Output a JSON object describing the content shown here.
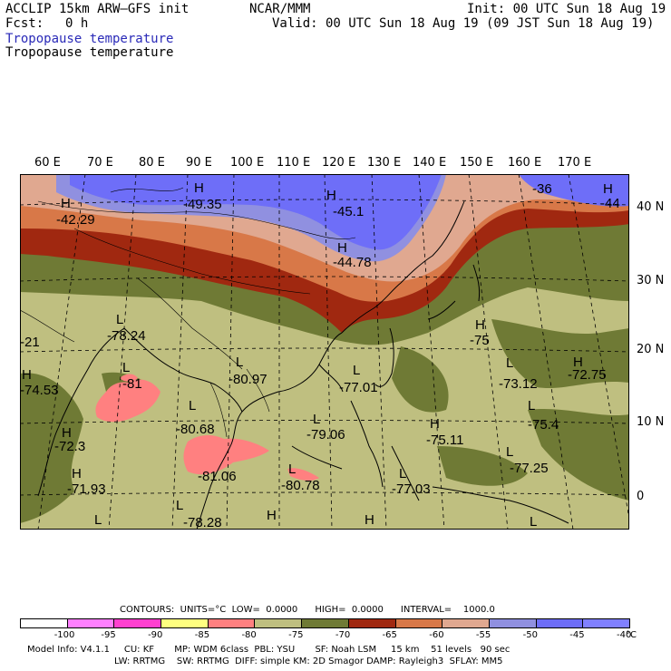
{
  "header": {
    "model": "ACCLIP 15km ARW–GFS init",
    "fcst_label": "Fcst:",
    "fcst_value": "0 h",
    "center": "NCAR/MMM",
    "init": "Init: 00 UTC Sun 18 Aug 19",
    "valid": "Valid: 00 UTC Sun 18 Aug 19 (09 JST Sun 18 Aug 19)",
    "field_title_blue": "Tropopause temperature",
    "field_title": "Tropopause temperature"
  },
  "axes": {
    "lon_labels": [
      "60 E",
      "70 E",
      "80 E",
      "90 E",
      "100 E",
      "110 E",
      "120 E",
      "130 E",
      "140 E",
      "150 E",
      "160 E",
      "170 E"
    ],
    "lat_labels": [
      "40 N",
      "30 N",
      "20 N",
      "10 N",
      "0"
    ]
  },
  "map_labels": [
    {
      "t": "H"
    },
    {
      "t": "-42.29"
    },
    {
      "t": "H"
    },
    {
      "t": "-49.35"
    },
    {
      "t": "H"
    },
    {
      "t": "-45.1"
    },
    {
      "t": "H"
    },
    {
      "t": "-44.78"
    },
    {
      "t": "-36"
    },
    {
      "t": "H"
    },
    {
      "t": "-44"
    },
    {
      "t": "L"
    },
    {
      "t": "-78.24"
    },
    {
      "t": "-21"
    },
    {
      "t": "H"
    },
    {
      "t": "-74.53"
    },
    {
      "t": "L"
    },
    {
      "t": "-81"
    },
    {
      "t": "L"
    },
    {
      "t": "-80.97"
    },
    {
      "t": "L"
    },
    {
      "t": "-77.01"
    },
    {
      "t": "H"
    },
    {
      "t": "-75"
    },
    {
      "t": "L"
    },
    {
      "t": "-73.12"
    },
    {
      "t": "H"
    },
    {
      "t": "-72.75"
    },
    {
      "t": "L"
    },
    {
      "t": "-80.68"
    },
    {
      "t": "L"
    },
    {
      "t": "-79.06"
    },
    {
      "t": "H"
    },
    {
      "t": "-75.11"
    },
    {
      "t": "L"
    },
    {
      "t": "-75.4"
    },
    {
      "t": "H"
    },
    {
      "t": "-72.3"
    },
    {
      "t": "H"
    },
    {
      "t": "-71.93"
    },
    {
      "t": "-81.06"
    },
    {
      "t": "L"
    },
    {
      "t": "-80.78"
    },
    {
      "t": "L"
    },
    {
      "t": "-77.03"
    },
    {
      "t": "L"
    },
    {
      "t": "-77.25"
    },
    {
      "t": "L"
    },
    {
      "t": "-78.28"
    },
    {
      "t": "H"
    },
    {
      "t": "H"
    },
    {
      "t": "L"
    },
    {
      "t": "L"
    }
  ],
  "footer": {
    "contours": "CONTOURS:  UNITS=°C  LOW=  0.0000      HIGH=  0.0000      INTERVAL=    1000.0",
    "unit": "°C",
    "model_info_1": "Model Info: V4.1.1     CU: KF       MP: WDM 6class  PBL: YSU       SF: Noah LSM     15 km    51 levels   90 sec",
    "model_info_2": "LW: RRTMG    SW: RRTMG  DIFF: simple KM: 2D Smagor DAMP: Rayleigh3  SFLAY: MM5"
  },
  "colorbar": {
    "labels": [
      "-100",
      "-95",
      "-90",
      "-85",
      "-80",
      "-75",
      "-70",
      "-65",
      "-60",
      "-55",
      "-50",
      "-45",
      "-40"
    ],
    "colors": [
      "#ffffff",
      "#ff80ff",
      "#ff40d0",
      "#ffff80",
      "#ff8080",
      "#bfbf80",
      "#6f7a35",
      "#a02810",
      "#d87848",
      "#e0a890",
      "#9090e0",
      "#6e6ef8",
      "#8080ff"
    ]
  },
  "legend_colors": {
    "cold_tropics": "#bfbf80",
    "dark_olive": "#6f7a35",
    "pink_low": "#ff8080"
  }
}
